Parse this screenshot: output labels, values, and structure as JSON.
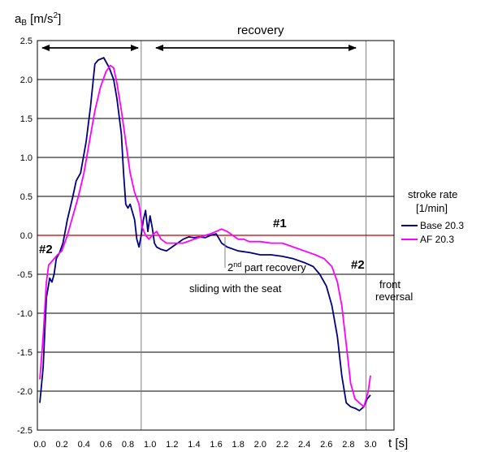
{
  "chart_data": {
    "type": "line",
    "ylabel_main": "a",
    "ylabel_sub": "B",
    "ylabel_units": " [m/s",
    "ylabel_sup": "2",
    "ylabel_close": "]",
    "xlabel": "t [s]",
    "xlim": [
      0,
      3.0
    ],
    "ylim": [
      -2.5,
      2.5
    ],
    "x_ticks": [
      0.0,
      0.2,
      0.4,
      0.6,
      0.8,
      1.0,
      1.2,
      1.4,
      1.6,
      1.8,
      2.0,
      2.2,
      2.4,
      2.6,
      2.8,
      3.0
    ],
    "x_tick_labels": [
      "0.0",
      "0.2",
      "0.4",
      "0.6",
      "0.8",
      "1.0",
      "1.2",
      "1.4",
      "1.6",
      "1.8",
      "2.0",
      "2.2",
      "2.4",
      "2.6",
      "2.8",
      "3.0"
    ],
    "y_ticks": [
      -2.5,
      -2.0,
      -1.5,
      -1.0,
      -0.5,
      0.0,
      0.5,
      1.0,
      1.5,
      2.0,
      2.5
    ],
    "y_tick_labels": [
      "-2.5",
      "-2.0",
      "-1.5",
      "-1.0",
      "-0.5",
      "0.0",
      "0.5",
      "1.0",
      "1.5",
      "2.0",
      "2.5"
    ],
    "grid": "horizontal",
    "zero_line_color": "#c00000",
    "vertical_markers": [
      0.92,
      2.96
    ],
    "legend": {
      "title_line1": "stroke rate",
      "title_line2": "[1/min]",
      "placement": "right"
    },
    "series": [
      {
        "name": "Base 20.3",
        "color": "#000080",
        "x": [
          0.0,
          0.03,
          0.06,
          0.09,
          0.11,
          0.13,
          0.15,
          0.18,
          0.21,
          0.25,
          0.3,
          0.33,
          0.37,
          0.42,
          0.46,
          0.5,
          0.53,
          0.58,
          0.63,
          0.67,
          0.7,
          0.74,
          0.76,
          0.78,
          0.8,
          0.82,
          0.84,
          0.86,
          0.88,
          0.9,
          0.92,
          0.94,
          0.96,
          0.98,
          1.0,
          1.02,
          1.04,
          1.06,
          1.1,
          1.15,
          1.2,
          1.25,
          1.3,
          1.35,
          1.4,
          1.45,
          1.5,
          1.55,
          1.6,
          1.65,
          1.7,
          1.8,
          1.9,
          2.0,
          2.1,
          2.2,
          2.3,
          2.4,
          2.48,
          2.54,
          2.6,
          2.65,
          2.7,
          2.74,
          2.78,
          2.82,
          2.86,
          2.9,
          2.94,
          2.97,
          3.0
        ],
        "y": [
          -2.15,
          -1.7,
          -0.8,
          -0.55,
          -0.6,
          -0.5,
          -0.3,
          -0.22,
          -0.1,
          0.2,
          0.5,
          0.7,
          0.8,
          1.2,
          1.65,
          2.2,
          2.25,
          2.28,
          2.15,
          2.0,
          1.75,
          1.3,
          0.8,
          0.4,
          0.35,
          0.4,
          0.3,
          0.2,
          -0.05,
          -0.15,
          0.0,
          0.2,
          0.32,
          0.05,
          0.25,
          0.1,
          -0.1,
          -0.15,
          -0.18,
          -0.2,
          -0.15,
          -0.1,
          -0.05,
          -0.02,
          -0.03,
          -0.02,
          -0.03,
          0.0,
          0.02,
          -0.1,
          -0.15,
          -0.2,
          -0.22,
          -0.25,
          -0.25,
          -0.27,
          -0.3,
          -0.35,
          -0.4,
          -0.5,
          -0.65,
          -0.9,
          -1.3,
          -1.8,
          -2.15,
          -2.2,
          -2.22,
          -2.25,
          -2.2,
          -2.1,
          -2.05
        ]
      },
      {
        "name": "AF 20.3",
        "color": "#ff00ff",
        "x": [
          0.0,
          0.03,
          0.06,
          0.08,
          0.1,
          0.13,
          0.16,
          0.2,
          0.25,
          0.3,
          0.35,
          0.4,
          0.45,
          0.5,
          0.55,
          0.6,
          0.64,
          0.67,
          0.7,
          0.74,
          0.78,
          0.82,
          0.86,
          0.9,
          0.93,
          0.96,
          0.99,
          1.02,
          1.06,
          1.1,
          1.15,
          1.2,
          1.3,
          1.4,
          1.5,
          1.55,
          1.6,
          1.65,
          1.7,
          1.75,
          1.8,
          1.85,
          1.9,
          2.0,
          2.1,
          2.2,
          2.3,
          2.4,
          2.5,
          2.58,
          2.65,
          2.7,
          2.74,
          2.78,
          2.82,
          2.86,
          2.9,
          2.94,
          2.98,
          3.0
        ],
        "y": [
          -1.85,
          -1.3,
          -0.6,
          -0.38,
          -0.35,
          -0.3,
          -0.25,
          -0.2,
          0.0,
          0.25,
          0.5,
          0.8,
          1.2,
          1.6,
          1.9,
          2.1,
          2.18,
          2.15,
          1.95,
          1.6,
          1.2,
          0.8,
          0.55,
          0.4,
          0.1,
          0.0,
          -0.05,
          0.0,
          0.05,
          -0.05,
          -0.1,
          -0.1,
          -0.1,
          -0.05,
          0.0,
          0.02,
          0.05,
          0.08,
          0.05,
          0.0,
          -0.05,
          -0.05,
          -0.08,
          -0.08,
          -0.1,
          -0.1,
          -0.15,
          -0.2,
          -0.25,
          -0.3,
          -0.4,
          -0.6,
          -0.9,
          -1.4,
          -1.9,
          -2.1,
          -2.15,
          -2.2,
          -2.0,
          -1.8
        ]
      }
    ],
    "annotations": {
      "recovery": "recovery",
      "hash1": "#1",
      "hash2_left": "#2",
      "hash2_right": "#2",
      "second_part_pre": "2",
      "second_part_sup": "nd",
      "second_part_post": " part recovery",
      "sliding": "sliding with the seat",
      "front_line1": "front",
      "front_line2": "reversal"
    }
  }
}
